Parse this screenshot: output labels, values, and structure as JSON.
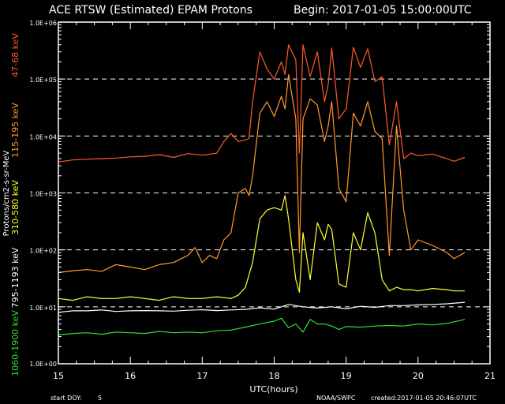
{
  "header": {
    "title": "ACE RTSW (Estimated) EPAM Protons",
    "begin": "Begin: 2017-01-05 15:00:00UTC"
  },
  "footer": {
    "start_doy_label": "start DOY:",
    "start_doy_value": "5",
    "credit": "NOAA/SWPC",
    "created": "created:2017-01-05 20:46:07UTC"
  },
  "colors": {
    "background": "#000000",
    "axes": "#ffffff",
    "grid": "#ffffff",
    "ch1": "#ff5a2a",
    "ch2": "#ff9a2e",
    "ch3": "#ffff33",
    "ch4": "#ffffff",
    "ch5": "#33dd33"
  },
  "chart_data": {
    "type": "line",
    "title": "ACE RTSW (Estimated) EPAM Protons",
    "xlabel": "UTC(hours)",
    "ylabel": "Protons/cm2-s-sr-MeV",
    "xlim": [
      15,
      21
    ],
    "ylim": [
      1,
      1000000
    ],
    "yscale": "log",
    "xticks": [
      "15",
      "16",
      "17",
      "18",
      "19",
      "20",
      "21"
    ],
    "yticks": [
      "1.0E+00",
      "1.0E+01",
      "1.0E+02",
      "1.0E+03",
      "1.0E+04",
      "1.0E+05",
      "1.0E+06"
    ],
    "grid": "dashed horizontal lines at decades 1e1 to 1e5",
    "legend_placement": "left vertical",
    "series": [
      {
        "name": "47-68 keV",
        "color": "#ff5a2a",
        "x": [
          15.0,
          15.2,
          15.4,
          15.6,
          15.8,
          16.0,
          16.2,
          16.4,
          16.6,
          16.8,
          17.0,
          17.2,
          17.3,
          17.4,
          17.5,
          17.6,
          17.65,
          17.7,
          17.8,
          17.9,
          18.0,
          18.1,
          18.15,
          18.2,
          18.3,
          18.35,
          18.4,
          18.5,
          18.6,
          18.7,
          18.75,
          18.8,
          18.9,
          19.0,
          19.1,
          19.2,
          19.3,
          19.4,
          19.5,
          19.6,
          19.7,
          19.8,
          19.9,
          20.0,
          20.2,
          20.4,
          20.5,
          20.65
        ],
        "y": [
          3500,
          3800,
          3900,
          4000,
          4100,
          4300,
          4400,
          4700,
          4200,
          4900,
          4600,
          5000,
          8000,
          11000,
          8000,
          8500,
          9000,
          40000,
          300000,
          150000,
          100000,
          200000,
          120000,
          400000,
          220000,
          5000,
          400000,
          110000,
          300000,
          40000,
          80000,
          350000,
          20000,
          30000,
          360000,
          160000,
          340000,
          90000,
          110000,
          7000,
          40000,
          4000,
          5000,
          4500,
          4800,
          4000,
          3600,
          4200
        ]
      },
      {
        "name": "115-195 keV",
        "color": "#ff9a2e",
        "x": [
          15.0,
          15.2,
          15.4,
          15.6,
          15.8,
          16.0,
          16.2,
          16.4,
          16.6,
          16.8,
          16.9,
          17.0,
          17.1,
          17.2,
          17.3,
          17.4,
          17.5,
          17.6,
          17.65,
          17.7,
          17.8,
          17.9,
          18.0,
          18.1,
          18.15,
          18.2,
          18.3,
          18.35,
          18.4,
          18.5,
          18.6,
          18.7,
          18.75,
          18.8,
          18.9,
          19.0,
          19.1,
          19.2,
          19.3,
          19.4,
          19.5,
          19.6,
          19.7,
          19.8,
          19.9,
          20.0,
          20.2,
          20.4,
          20.5,
          20.65
        ],
        "y": [
          40,
          43,
          45,
          42,
          55,
          50,
          45,
          55,
          60,
          80,
          110,
          60,
          80,
          70,
          150,
          200,
          1000,
          1200,
          900,
          2000,
          25000,
          40000,
          22000,
          50000,
          30000,
          120000,
          20000,
          90,
          20000,
          45000,
          35000,
          8000,
          15000,
          40000,
          1200,
          700,
          25000,
          15000,
          40000,
          12000,
          9000,
          80,
          15000,
          500,
          100,
          150,
          120,
          90,
          70,
          90
        ]
      },
      {
        "name": "310-580 keV",
        "color": "#ffff33",
        "x": [
          15.0,
          15.2,
          15.4,
          15.6,
          15.8,
          16.0,
          16.2,
          16.4,
          16.6,
          16.8,
          17.0,
          17.2,
          17.4,
          17.5,
          17.6,
          17.7,
          17.8,
          17.9,
          18.0,
          18.1,
          18.15,
          18.2,
          18.3,
          18.35,
          18.4,
          18.5,
          18.6,
          18.7,
          18.75,
          18.8,
          18.9,
          19.0,
          19.1,
          19.2,
          19.3,
          19.4,
          19.5,
          19.6,
          19.7,
          19.8,
          19.9,
          20.0,
          20.2,
          20.4,
          20.5,
          20.65
        ],
        "y": [
          14,
          13,
          15,
          14,
          14,
          15,
          14,
          13,
          15,
          14,
          14,
          15,
          14,
          16,
          22,
          60,
          350,
          500,
          550,
          500,
          900,
          350,
          30,
          18,
          200,
          30,
          300,
          150,
          280,
          230,
          25,
          22,
          200,
          100,
          450,
          200,
          30,
          19,
          22,
          20,
          20,
          19,
          21,
          20,
          19,
          19
        ]
      },
      {
        "name": "795-1193 keV",
        "color": "#ffffff",
        "x": [
          15.0,
          15.2,
          15.4,
          15.6,
          15.8,
          16.0,
          16.2,
          16.4,
          16.6,
          16.8,
          17.0,
          17.2,
          17.4,
          17.6,
          17.8,
          18.0,
          18.2,
          18.4,
          18.6,
          18.8,
          19.0,
          19.2,
          19.4,
          19.6,
          19.8,
          20.0,
          20.2,
          20.4,
          20.65
        ],
        "y": [
          8.0,
          8.5,
          8.5,
          8.8,
          8.3,
          8.5,
          8.6,
          8.5,
          8.4,
          8.7,
          8.9,
          8.6,
          8.8,
          9.0,
          9.6,
          9.1,
          11.0,
          10.0,
          9.5,
          10.0,
          9.2,
          10.2,
          9.8,
          10.5,
          10.5,
          10.8,
          11.0,
          11.3,
          12.0
        ]
      },
      {
        "name": "1060-1900 keV",
        "color": "#33dd33",
        "x": [
          15.0,
          15.2,
          15.4,
          15.6,
          15.8,
          16.0,
          16.2,
          16.4,
          16.6,
          16.8,
          17.0,
          17.2,
          17.4,
          17.6,
          17.8,
          18.0,
          18.1,
          18.2,
          18.3,
          18.4,
          18.5,
          18.6,
          18.7,
          18.8,
          18.9,
          19.0,
          19.2,
          19.4,
          19.6,
          19.8,
          20.0,
          20.2,
          20.4,
          20.65
        ],
        "y": [
          3.2,
          3.4,
          3.5,
          3.3,
          3.6,
          3.5,
          3.4,
          3.7,
          3.5,
          3.6,
          3.5,
          3.8,
          3.9,
          4.4,
          5.0,
          5.6,
          6.3,
          4.3,
          5.0,
          3.6,
          6.0,
          5.0,
          5.0,
          4.6,
          4.0,
          4.5,
          4.4,
          4.6,
          4.7,
          4.6,
          5.0,
          4.8,
          5.1,
          6.0
        ]
      }
    ]
  }
}
